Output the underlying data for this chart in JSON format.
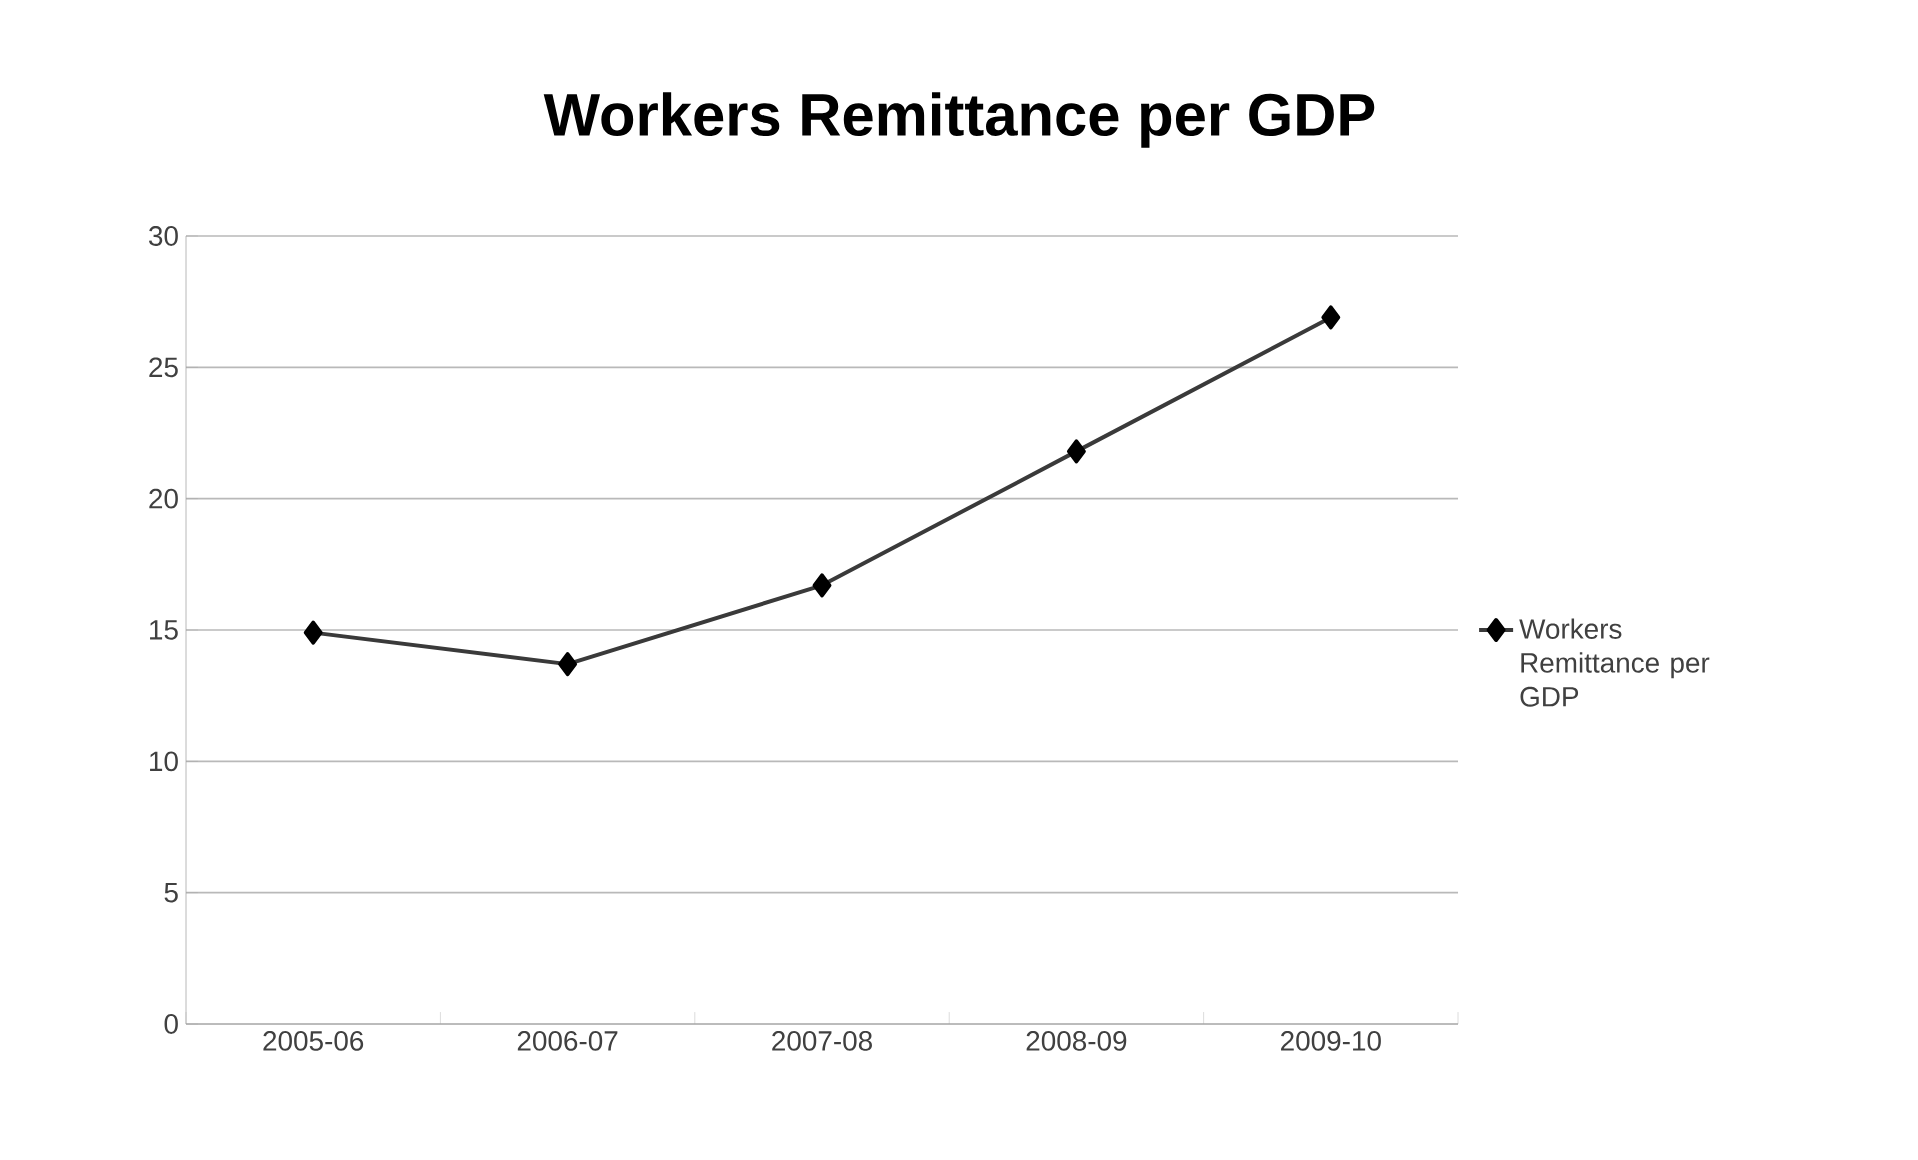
{
  "chart_data": {
    "type": "line",
    "title": "Workers Remittance per GDP",
    "categories": [
      "2005-06",
      "2006-07",
      "2007-08",
      "2008-09",
      "2009-10"
    ],
    "series": [
      {
        "name": "Workers Remittance per GDP",
        "color": "#3a3a3a",
        "values": [
          14.9,
          13.7,
          16.7,
          21.8,
          26.9
        ]
      }
    ],
    "ylim": [
      0,
      30
    ],
    "yticks": [
      0,
      5,
      10,
      15,
      20,
      25,
      30
    ],
    "grid": "y",
    "legend": "right",
    "marker": "diamond",
    "line_style": "solid"
  }
}
